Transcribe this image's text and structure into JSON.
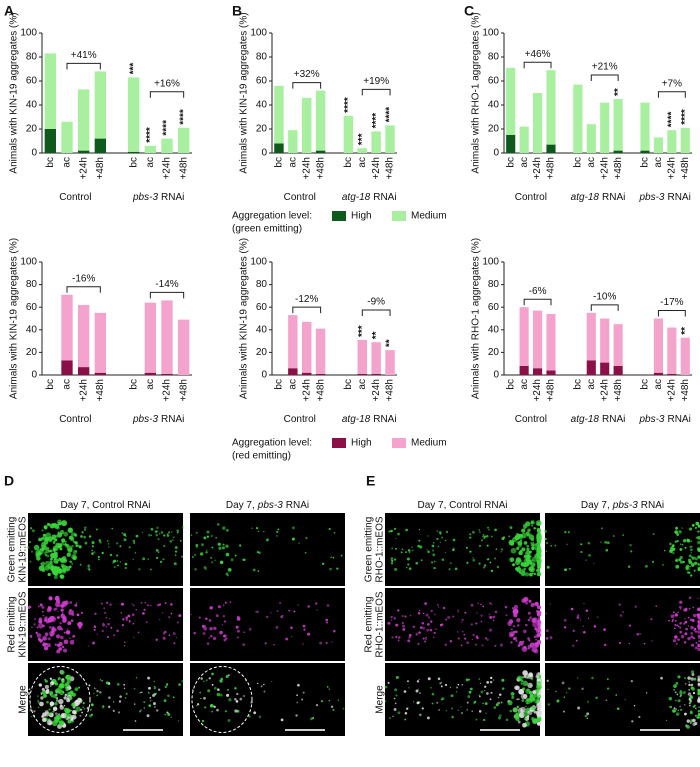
{
  "panel_letters": [
    "A",
    "B",
    "C",
    "D",
    "E"
  ],
  "chart_data": [
    {
      "type": "bar",
      "y_label": "Animals with KIN-19 aggregates (%)",
      "ylim": [
        0,
        100
      ],
      "yticks": [
        0,
        20,
        40,
        60,
        80,
        100
      ],
      "categories": [
        "bc",
        "ac",
        "+24h",
        "+48h",
        "bc",
        "ac",
        "+24h",
        "+48h"
      ],
      "groups": [
        {
          "name": "Control",
          "change": "+41%"
        },
        {
          "gene": "pbs-3",
          "name": "RNAi",
          "change": "+16%"
        }
      ],
      "series": [
        {
          "color": "#0e5a1c",
          "values": [
            20,
            0,
            2,
            12,
            1,
            0,
            0,
            0
          ]
        },
        {
          "color": "#a8f0a0",
          "values": [
            63,
            26,
            51,
            56,
            62,
            6,
            12,
            21
          ]
        }
      ],
      "annotations": [
        null,
        null,
        null,
        null,
        "***",
        "****",
        "****",
        "****"
      ]
    },
    {
      "type": "bar",
      "y_label": "Animals with KIN-19 aggregates (%)",
      "ylim": [
        0,
        100
      ],
      "yticks": [
        0,
        20,
        40,
        60,
        80,
        100
      ],
      "categories": [
        "bc",
        "ac",
        "+24h",
        "+48h",
        "bc",
        "ac",
        "+24h",
        "+48h"
      ],
      "groups": [
        {
          "name": "Control",
          "change": "-16%"
        },
        {
          "gene": "pbs-3",
          "name": "RNAi",
          "change": "-14%"
        }
      ],
      "series": [
        {
          "color": "#8c1048",
          "values": [
            0,
            13,
            7,
            2,
            0,
            2,
            1,
            0
          ]
        },
        {
          "color": "#f4a3cc",
          "values": [
            0,
            58,
            55,
            53,
            0,
            62,
            65,
            49
          ]
        }
      ]
    },
    {
      "type": "bar",
      "y_label": "Animals with KIN-19 aggregates (%)",
      "ylim": [
        0,
        100
      ],
      "yticks": [
        0,
        20,
        40,
        60,
        80,
        100
      ],
      "categories": [
        "bc",
        "ac",
        "+24h",
        "+48h",
        "bc",
        "ac",
        "+24h",
        "+48h"
      ],
      "groups": [
        {
          "name": "Control",
          "change": "+32%"
        },
        {
          "gene": "atg-18",
          "name": "RNAi",
          "change": "+19%"
        }
      ],
      "series": [
        {
          "color": "#0e5a1c",
          "values": [
            8,
            0,
            0,
            2,
            0,
            0,
            0,
            0
          ]
        },
        {
          "color": "#a8f0a0",
          "values": [
            48,
            19,
            46,
            50,
            31,
            4,
            18,
            23
          ]
        }
      ],
      "annotations": [
        null,
        null,
        null,
        null,
        "****",
        "***",
        "****",
        "****"
      ]
    },
    {
      "type": "bar",
      "y_label": "Animals with KIN-19 aggregates (%)",
      "ylim": [
        0,
        100
      ],
      "yticks": [
        0,
        20,
        40,
        60,
        80,
        100
      ],
      "categories": [
        "bc",
        "ac",
        "+24h",
        "+48h",
        "bc",
        "ac",
        "+24h",
        "+48h"
      ],
      "groups": [
        {
          "name": "Control",
          "change": "-12%"
        },
        {
          "gene": "atg-18",
          "name": "RNAi",
          "change": "-9%"
        }
      ],
      "series": [
        {
          "color": "#8c1048",
          "values": [
            0,
            6,
            2,
            1,
            0,
            1,
            1,
            0
          ]
        },
        {
          "color": "#f4a3cc",
          "values": [
            0,
            47,
            45,
            40,
            0,
            30,
            28,
            22
          ]
        }
      ],
      "annotations": [
        null,
        null,
        null,
        null,
        null,
        "***",
        "**",
        "**"
      ]
    },
    {
      "type": "bar",
      "y_label": "Animals with RHO-1 aggregates (%)",
      "ylim": [
        0,
        100
      ],
      "yticks": [
        0,
        20,
        40,
        60,
        80,
        100
      ],
      "categories": [
        "bc",
        "ac",
        "+24h",
        "+48h",
        "bc",
        "ac",
        "+24h",
        "+48h",
        "bc",
        "ac",
        "+24h",
        "+48h"
      ],
      "groups": [
        {
          "name": "Control",
          "change": "+46%"
        },
        {
          "gene": "atg-18",
          "name": "RNAi",
          "change": "+21%"
        },
        {
          "gene": "pbs-3",
          "name": "RNAi",
          "change": "+7%"
        }
      ],
      "series": [
        {
          "color": "#0e5a1c",
          "values": [
            15,
            0,
            0,
            7,
            0,
            0,
            0,
            2,
            2,
            0,
            0,
            0
          ]
        },
        {
          "color": "#a8f0a0",
          "values": [
            56,
            22,
            50,
            62,
            57,
            24,
            42,
            43,
            40,
            13,
            19,
            21
          ]
        }
      ],
      "annotations": [
        null,
        null,
        null,
        null,
        null,
        null,
        null,
        "**",
        null,
        null,
        "****",
        "****"
      ]
    },
    {
      "type": "bar",
      "y_label": "Animals with RHO-1 aggregates (%)",
      "ylim": [
        0,
        100
      ],
      "yticks": [
        0,
        20,
        40,
        60,
        80,
        100
      ],
      "categories": [
        "bc",
        "ac",
        "+24h",
        "+48h",
        "bc",
        "ac",
        "+24h",
        "+48h",
        "bc",
        "ac",
        "+24h",
        "+48h"
      ],
      "groups": [
        {
          "name": "Control",
          "change": "-6%"
        },
        {
          "gene": "atg-18",
          "name": "RNAi",
          "change": "-10%"
        },
        {
          "gene": "pbs-3",
          "name": "RNAi",
          "change": "-17%"
        }
      ],
      "series": [
        {
          "color": "#8c1048",
          "values": [
            0,
            8,
            6,
            4,
            0,
            13,
            11,
            8,
            0,
            2,
            1,
            0
          ]
        },
        {
          "color": "#f4a3cc",
          "values": [
            0,
            52,
            51,
            50,
            0,
            42,
            39,
            37,
            0,
            48,
            41,
            33
          ]
        }
      ],
      "annotations": [
        null,
        null,
        null,
        null,
        null,
        null,
        null,
        null,
        null,
        null,
        null,
        "**"
      ]
    }
  ],
  "legends": [
    {
      "title": "Aggregation level:",
      "note": "(green emitting)",
      "items": [
        {
          "name": "High"
        },
        {
          "name": "Medium"
        }
      ]
    },
    {
      "title": "Aggregation level:",
      "note": "(red emitting)",
      "items": [
        {
          "name": "High"
        },
        {
          "name": "Medium"
        }
      ]
    }
  ],
  "image_panels": [
    {
      "columns": [
        {
          "name": "Day 7, Control RNAi"
        },
        {
          "pre": "Day 7,",
          "gene": "pbs-3",
          "name": "RNAi"
        }
      ],
      "rows": [
        [
          "Green emitting",
          "KIN-19::mEOS"
        ],
        [
          "Red emitting",
          "KIN-19::mEOS"
        ],
        [
          "Merge"
        ]
      ]
    },
    {
      "columns": [
        {
          "name": "Day 7, Control RNAi"
        },
        {
          "pre": "Day 7,",
          "gene": "pbs-3",
          "name": "RNAi"
        }
      ],
      "rows": [
        [
          "Green emitting",
          "RHO-1::mEOS"
        ],
        [
          "Red emitting",
          "RHO-1::mEOS"
        ],
        [
          "Merge"
        ]
      ]
    }
  ]
}
